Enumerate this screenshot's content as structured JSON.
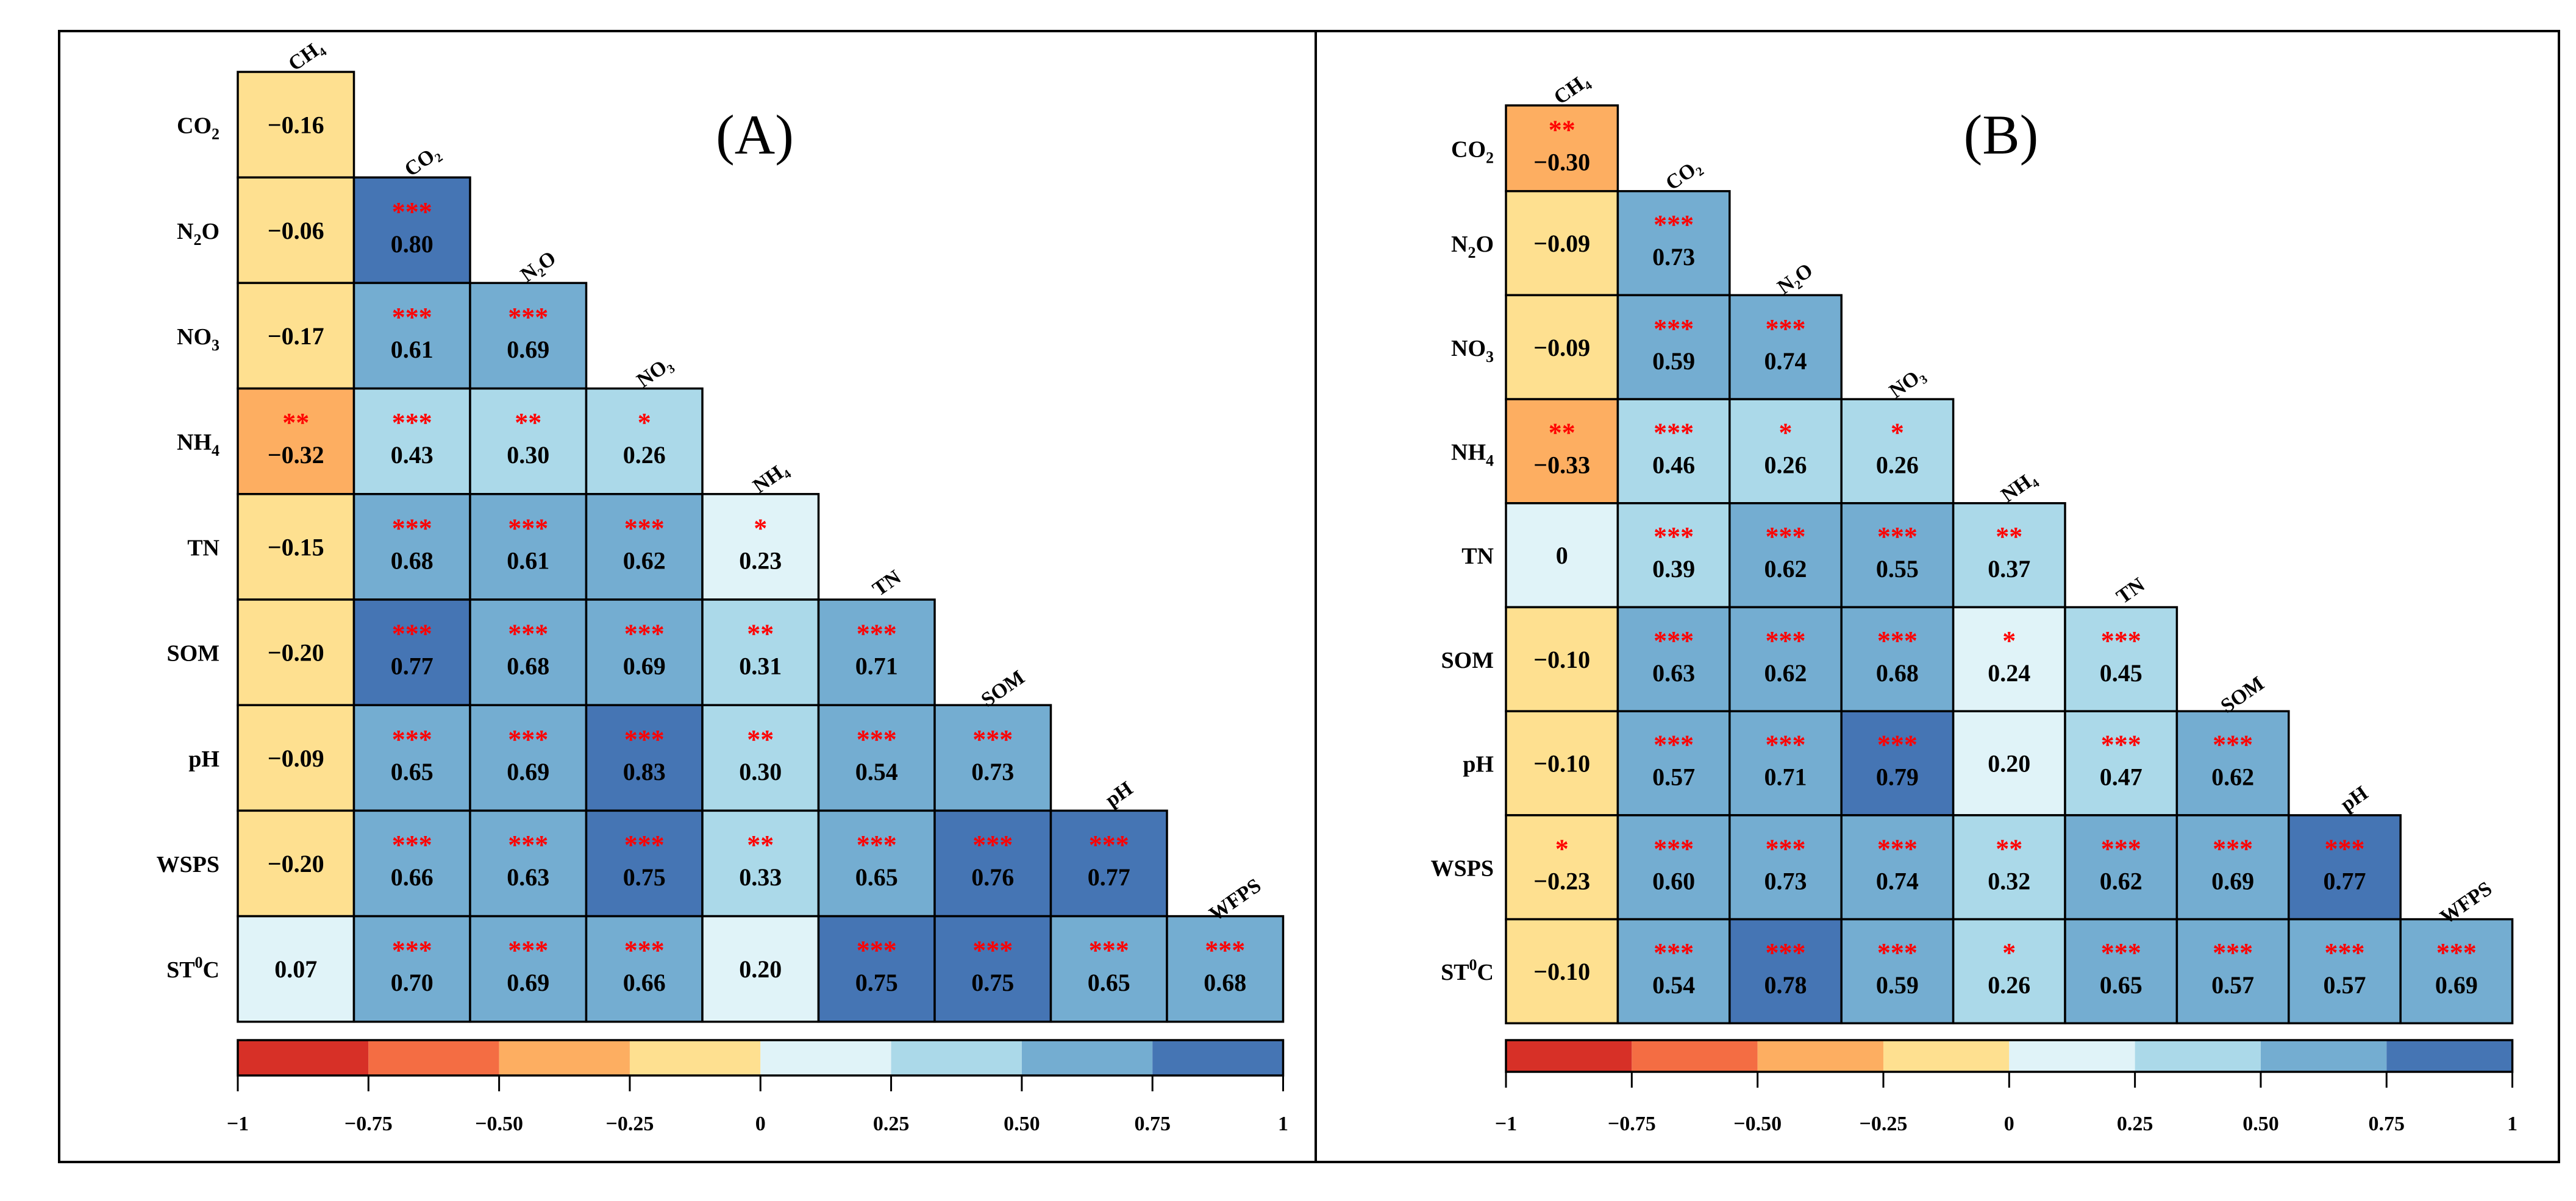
{
  "chart_data": [
    {
      "type": "heatmap",
      "title": "(A)",
      "col_labels": [
        "CH₄",
        "CO₂",
        "N₂O",
        "NO₃",
        "NH₄",
        "TN",
        "SOM",
        "pH",
        "WFPS"
      ],
      "row_labels": [
        {
          "base": "CO",
          "sub": "2",
          "sup": "",
          "tail": ""
        },
        {
          "base": "N",
          "sub": "2",
          "sup": "",
          "tail": "O"
        },
        {
          "base": "NO",
          "sub": "3",
          "sup": "",
          "tail": ""
        },
        {
          "base": "NH",
          "sub": "4",
          "sup": "",
          "tail": ""
        },
        {
          "base": "TN",
          "sub": "",
          "sup": "",
          "tail": ""
        },
        {
          "base": "SOM",
          "sub": "",
          "sup": "",
          "tail": ""
        },
        {
          "base": "pH",
          "sub": "",
          "sup": "",
          "tail": ""
        },
        {
          "base": "WSPS",
          "sub": "",
          "sup": "",
          "tail": ""
        },
        {
          "base": "ST",
          "sub": "",
          "sup": "0",
          "tail": "C"
        }
      ],
      "values": [
        [
          "−0.16"
        ],
        [
          "−0.06",
          "0.80"
        ],
        [
          "−0.17",
          "0.61",
          "0.69"
        ],
        [
          "−0.32",
          "0.43",
          "0.30",
          "0.26"
        ],
        [
          "−0.15",
          "0.68",
          "0.61",
          "0.62",
          "0.23"
        ],
        [
          "−0.20",
          "0.77",
          "0.68",
          "0.69",
          "0.31",
          "0.71"
        ],
        [
          "−0.09",
          "0.65",
          "0.69",
          "0.83",
          "0.30",
          "0.54",
          "0.73"
        ],
        [
          "−0.20",
          "0.66",
          "0.63",
          "0.75",
          "0.33",
          "0.65",
          "0.76",
          "0.77"
        ],
        [
          "0.07",
          "0.70",
          "0.69",
          "0.66",
          "0.20",
          "0.75",
          "0.75",
          "0.65",
          "0.68"
        ]
      ],
      "significance": [
        [
          ""
        ],
        [
          "",
          "***"
        ],
        [
          "",
          "***",
          "***"
        ],
        [
          "**",
          "***",
          "**",
          "*"
        ],
        [
          "",
          "***",
          "***",
          "***",
          "*"
        ],
        [
          "",
          "***",
          "***",
          "***",
          "**",
          "***"
        ],
        [
          "",
          "***",
          "***",
          "***",
          "**",
          "***",
          "***"
        ],
        [
          "",
          "***",
          "***",
          "***",
          "**",
          "***",
          "***",
          "***"
        ],
        [
          "",
          "***",
          "***",
          "***",
          "",
          "***",
          "***",
          "***",
          "***"
        ]
      ],
      "colorbar": {
        "ticks": [
          "−1",
          "−0.75",
          "−0.50",
          "−0.25",
          "0",
          "0.25",
          "0.50",
          "0.75",
          "1"
        ],
        "range": [
          -1,
          1
        ]
      }
    },
    {
      "type": "heatmap",
      "title": "(B)",
      "col_labels": [
        "CH₄",
        "CO₂",
        "N₂O",
        "NO₃",
        "NH₄",
        "TN",
        "SOM",
        "pH",
        "WFPS"
      ],
      "row_labels": [
        {
          "base": "CO",
          "sub": "2",
          "sup": "",
          "tail": ""
        },
        {
          "base": "N",
          "sub": "2",
          "sup": "",
          "tail": "O"
        },
        {
          "base": "NO",
          "sub": "3",
          "sup": "",
          "tail": ""
        },
        {
          "base": "NH",
          "sub": "4",
          "sup": "",
          "tail": ""
        },
        {
          "base": "TN",
          "sub": "",
          "sup": "",
          "tail": ""
        },
        {
          "base": "SOM",
          "sub": "",
          "sup": "",
          "tail": ""
        },
        {
          "base": "pH",
          "sub": "",
          "sup": "",
          "tail": ""
        },
        {
          "base": "WSPS",
          "sub": "",
          "sup": "",
          "tail": ""
        },
        {
          "base": "ST",
          "sub": "",
          "sup": "0",
          "tail": "C"
        }
      ],
      "values": [
        [
          "−0.30"
        ],
        [
          "−0.09",
          "0.73"
        ],
        [
          "−0.09",
          "0.59",
          "0.74"
        ],
        [
          "−0.33",
          "0.46",
          "0.26",
          "0.26"
        ],
        [
          "0",
          "0.39",
          "0.62",
          "0.55",
          "0.37"
        ],
        [
          "−0.10",
          "0.63",
          "0.62",
          "0.68",
          "0.24",
          "0.45"
        ],
        [
          "−0.10",
          "0.57",
          "0.71",
          "0.79",
          "0.20",
          "0.47",
          "0.62"
        ],
        [
          "−0.23",
          "0.60",
          "0.73",
          "0.74",
          "0.32",
          "0.62",
          "0.69",
          "0.77"
        ],
        [
          "−0.10",
          "0.54",
          "0.78",
          "0.59",
          "0.26",
          "0.65",
          "0.57",
          "0.57",
          "0.69"
        ]
      ],
      "significance": [
        [
          "**"
        ],
        [
          "",
          "***"
        ],
        [
          "",
          "***",
          "***"
        ],
        [
          "**",
          "***",
          "*",
          "*"
        ],
        [
          "",
          "***",
          "***",
          "***",
          "**"
        ],
        [
          "",
          "***",
          "***",
          "***",
          "*",
          "***"
        ],
        [
          "",
          "***",
          "***",
          "***",
          "",
          "***",
          "***"
        ],
        [
          "*",
          "***",
          "***",
          "***",
          "**",
          "***",
          "***",
          "***"
        ],
        [
          "",
          "***",
          "***",
          "***",
          "*",
          "***",
          "***",
          "***",
          "***"
        ]
      ],
      "colorbar": {
        "ticks": [
          "−1",
          "−0.75",
          "−0.50",
          "−0.25",
          "0",
          "0.25",
          "0.50",
          "0.75",
          "1"
        ],
        "range": [
          -1,
          1
        ]
      }
    }
  ],
  "palette": {
    "bins": [
      "#d73027",
      "#f46d43",
      "#fdae61",
      "#fee090",
      "#e0f3f8",
      "#abd9e9",
      "#74add1",
      "#4575b4"
    ],
    "star_color": "#ff0000",
    "text_color": "#000000",
    "frame_color": "#000000"
  }
}
